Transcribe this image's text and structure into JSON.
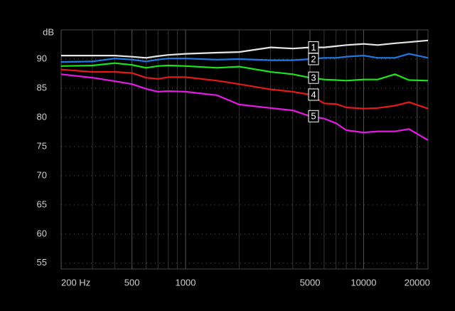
{
  "chart_data": {
    "type": "line",
    "y_label": "dB",
    "log_x": true,
    "x": [
      200,
      300,
      400,
      500,
      600,
      700,
      800,
      1000,
      1500,
      2000,
      3000,
      4000,
      5000,
      6000,
      7000,
      8000,
      10000,
      12000,
      15000,
      18000,
      23000
    ],
    "series": [
      {
        "name": "1",
        "color": "#e6e6e6",
        "values": [
          90.6,
          90.6,
          90.6,
          90.4,
          90.2,
          90.5,
          90.7,
          90.9,
          91.1,
          91.2,
          92.0,
          91.8,
          92.0,
          92.0,
          92.2,
          92.4,
          92.6,
          92.4,
          92.7,
          92.9,
          93.2
        ]
      },
      {
        "name": "2",
        "color": "#1e7be6",
        "values": [
          89.5,
          89.6,
          90.1,
          89.9,
          89.6,
          89.9,
          90.1,
          90.1,
          89.9,
          90.0,
          89.8,
          89.8,
          90.0,
          90.2,
          90.2,
          90.4,
          90.6,
          90.2,
          90.2,
          90.9,
          90.2
        ]
      },
      {
        "name": "3",
        "color": "#19e619",
        "values": [
          88.8,
          88.9,
          89.3,
          89.0,
          88.5,
          88.8,
          88.9,
          88.8,
          88.5,
          88.7,
          87.8,
          87.4,
          86.8,
          86.5,
          86.4,
          86.3,
          86.5,
          86.5,
          87.4,
          86.4,
          86.3
        ]
      },
      {
        "name": "4",
        "color": "#e61919",
        "values": [
          88.2,
          87.8,
          87.8,
          87.6,
          86.8,
          86.6,
          86.9,
          86.9,
          86.3,
          85.7,
          84.8,
          84.4,
          83.9,
          82.4,
          82.3,
          81.7,
          81.5,
          81.6,
          82.0,
          82.6,
          81.5
        ]
      },
      {
        "name": "5",
        "color": "#e619e6",
        "values": [
          87.4,
          86.8,
          86.2,
          85.7,
          84.9,
          84.4,
          84.5,
          84.4,
          83.8,
          82.2,
          81.6,
          81.2,
          80.2,
          79.8,
          79.0,
          77.8,
          77.4,
          77.6,
          77.6,
          78.0,
          76.1
        ]
      }
    ],
    "xlim": [
      200,
      23000
    ],
    "ylim": [
      54,
      95
    ],
    "xticks": [
      {
        "value": 200,
        "label": "200 Hz"
      },
      500,
      1000,
      5000,
      10000,
      20000
    ],
    "xminor": [
      300,
      400,
      600,
      700,
      800,
      900,
      2000,
      3000,
      4000,
      6000,
      7000,
      8000,
      9000
    ],
    "yticks": [
      55,
      60,
      65,
      70,
      75,
      80,
      85,
      90
    ],
    "grid": true
  }
}
